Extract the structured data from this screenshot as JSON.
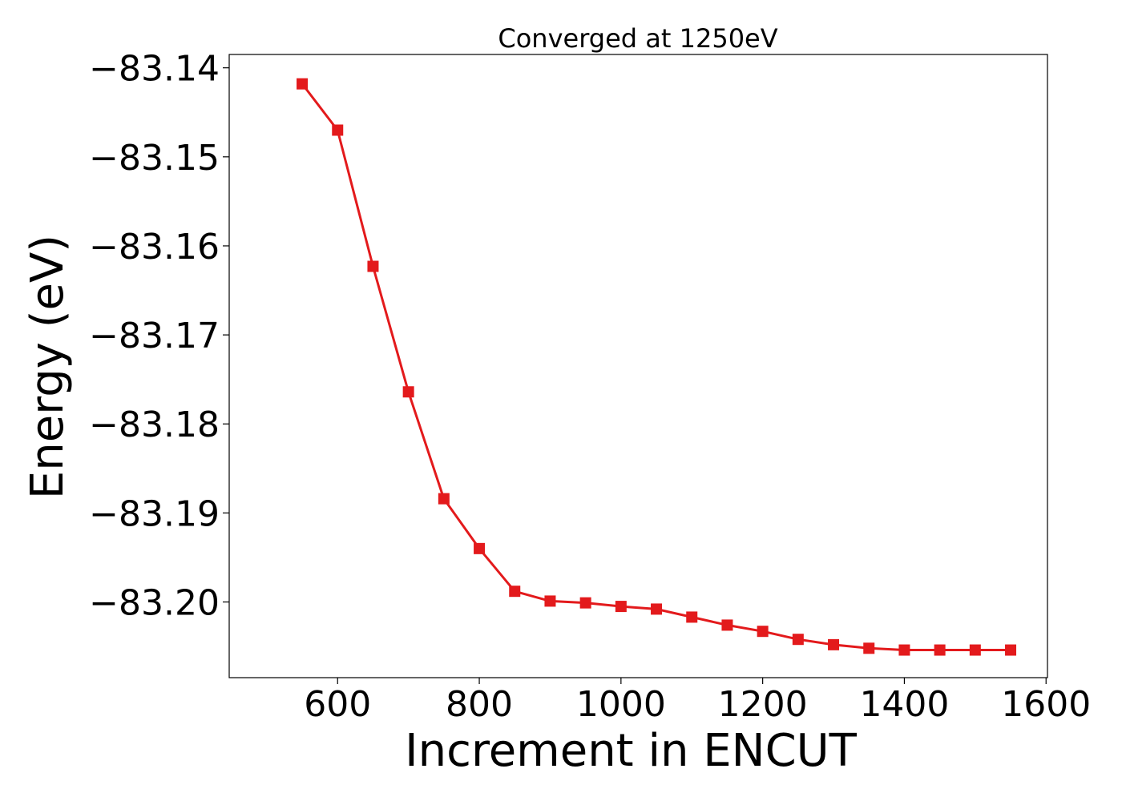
{
  "chart_data": {
    "type": "line",
    "title": "Converged at 1250eV",
    "xlabel": "Increment in ENCUT",
    "ylabel": "Energy (eV)",
    "xlim": [
      447,
      1602
    ],
    "ylim": [
      -83.2085,
      -83.1385
    ],
    "x_ticks": [
      600,
      800,
      1000,
      1200,
      1400,
      1600
    ],
    "x_tick_labels": [
      "600",
      "800",
      "1000",
      "1200",
      "1400",
      "1600"
    ],
    "y_ticks": [
      -83.14,
      -83.15,
      -83.16,
      -83.17,
      -83.18,
      -83.19,
      -83.2
    ],
    "y_tick_labels": [
      "−83.14",
      "−83.15",
      "−83.16",
      "−83.17",
      "−83.18",
      "−83.19",
      "−83.20"
    ],
    "grid": false,
    "series": [
      {
        "marker": "square",
        "color": "#e31a1c",
        "x": [
          550,
          600,
          650,
          700,
          750,
          800,
          850,
          900,
          950,
          1000,
          1050,
          1100,
          1150,
          1200,
          1250,
          1300,
          1350,
          1400,
          1450,
          1500,
          1550
        ],
        "y": [
          -83.1418,
          -83.147,
          -83.1623,
          -83.1764,
          -83.1884,
          -83.194,
          -83.1988,
          -83.1999,
          -83.2001,
          -83.2005,
          -83.2008,
          -83.2017,
          -83.2026,
          -83.2033,
          -83.2042,
          -83.2048,
          -83.2052,
          -83.2054,
          -83.2054,
          -83.2054,
          -83.2054
        ]
      }
    ]
  }
}
